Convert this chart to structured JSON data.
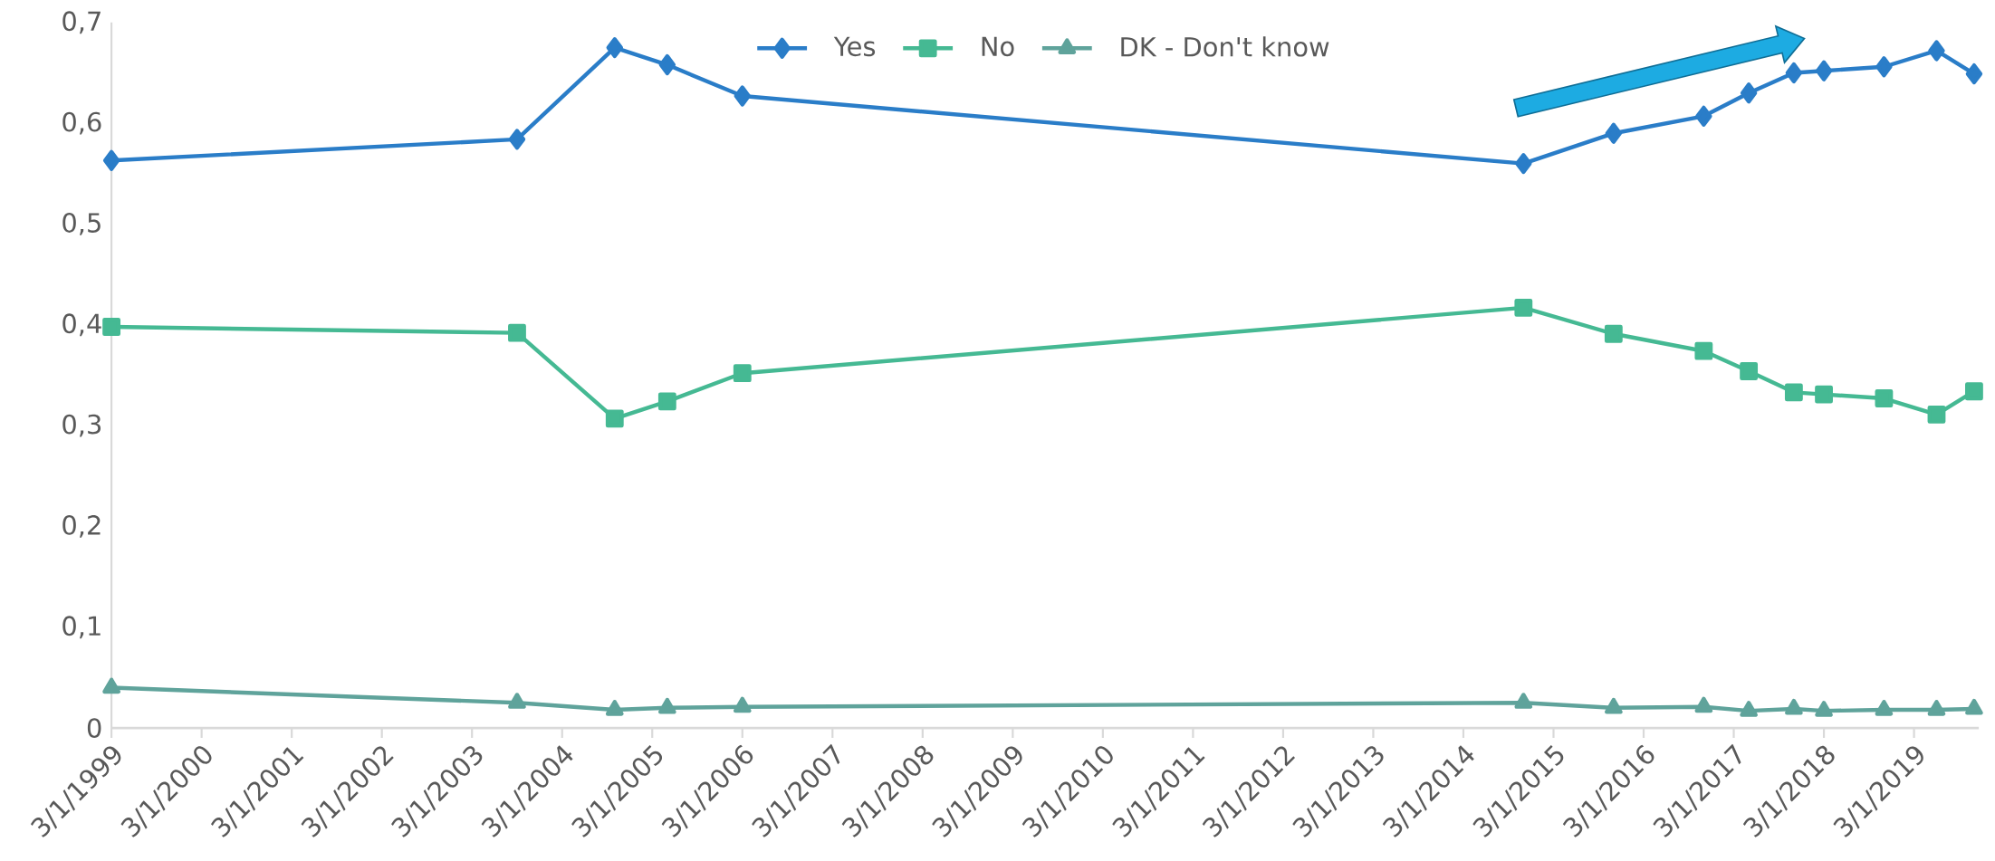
{
  "chart_data": {
    "type": "line",
    "x": [
      "1999-03",
      "2003-09",
      "2004-10",
      "2005-05",
      "2006-03",
      "2014-11",
      "2015-11",
      "2016-11",
      "2017-05",
      "2017-11",
      "2018-03",
      "2018-11",
      "2019-06",
      "2019-11"
    ],
    "series": [
      {
        "name": "Yes",
        "color": "#2a7dc8",
        "marker": "diamond",
        "values": [
          0.563,
          0.584,
          0.675,
          0.658,
          0.627,
          0.56,
          0.59,
          0.607,
          0.63,
          0.65,
          0.652,
          0.656,
          0.672,
          0.649
        ]
      },
      {
        "name": "No",
        "color": "#45b993",
        "marker": "square",
        "values": [
          0.398,
          0.392,
          0.307,
          0.324,
          0.352,
          0.417,
          0.391,
          0.374,
          0.354,
          0.333,
          0.331,
          0.327,
          0.311,
          0.334
        ]
      },
      {
        "name": "DK - Don't know",
        "color": "#5fa39b",
        "marker": "triangle",
        "values": [
          0.04,
          0.025,
          0.018,
          0.02,
          0.021,
          0.025,
          0.02,
          0.021,
          0.017,
          0.019,
          0.017,
          0.018,
          0.018,
          0.019
        ]
      }
    ],
    "xlim": [
      "1999-03-01",
      "2019-11-20"
    ],
    "xticks": [
      {
        "value": "1999-03-01",
        "label": "3/1/1999"
      },
      {
        "value": "2000-03-01",
        "label": "3/1/2000"
      },
      {
        "value": "2001-03-01",
        "label": "3/1/2001"
      },
      {
        "value": "2002-03-01",
        "label": "3/1/2002"
      },
      {
        "value": "2003-03-01",
        "label": "3/1/2003"
      },
      {
        "value": "2004-03-01",
        "label": "3/1/2004"
      },
      {
        "value": "2005-03-01",
        "label": "3/1/2005"
      },
      {
        "value": "2006-03-01",
        "label": "3/1/2006"
      },
      {
        "value": "2007-03-01",
        "label": "3/1/2007"
      },
      {
        "value": "2008-03-01",
        "label": "3/1/2008"
      },
      {
        "value": "2009-03-01",
        "label": "3/1/2009"
      },
      {
        "value": "2010-03-01",
        "label": "3/1/2010"
      },
      {
        "value": "2011-03-01",
        "label": "3/1/2011"
      },
      {
        "value": "2012-03-01",
        "label": "3/1/2012"
      },
      {
        "value": "2013-03-01",
        "label": "3/1/2013"
      },
      {
        "value": "2014-03-01",
        "label": "3/1/2014"
      },
      {
        "value": "2015-03-01",
        "label": "3/1/2015"
      },
      {
        "value": "2016-03-01",
        "label": "3/1/2016"
      },
      {
        "value": "2017-03-01",
        "label": "3/1/2017"
      },
      {
        "value": "2018-03-01",
        "label": "3/1/2018"
      },
      {
        "value": "2019-03-01",
        "label": "3/1/2019"
      }
    ],
    "ylim": [
      0,
      0.7
    ],
    "yticks": [
      0,
      {
        "value": 0.1,
        "label": "0,1"
      },
      {
        "value": 0.2,
        "label": "0,2"
      },
      {
        "value": 0.3,
        "label": "0,3"
      },
      {
        "value": 0.4,
        "label": "0,4"
      },
      {
        "value": 0.5,
        "label": "0,5"
      },
      {
        "value": 0.6,
        "label": "0,6"
      },
      {
        "value": 0.7,
        "label": "0,7"
      }
    ],
    "legend": "top",
    "line_style": "solid"
  }
}
